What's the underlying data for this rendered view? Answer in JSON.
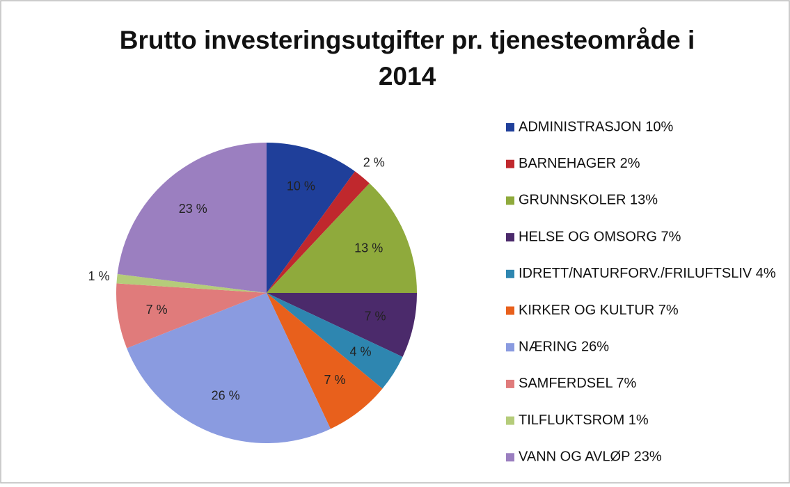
{
  "chart_data": {
    "type": "pie",
    "title": [
      "Brutto investeringsutgifter pr. tjenesteområde i",
      "2014"
    ],
    "categories": [
      "ADMINISTRASJON 10%",
      "BARNEHAGER 2%",
      "GRUNNSKOLER 13%",
      "HELSE OG OMSORG 7%",
      "IDRETT/NATURFORV./FRILUFTSLIV 4%",
      "KIRKER OG KULTUR 7%",
      "NÆRING 26%",
      "SAMFERDSEL 7%",
      "TILFLUKTSROM 1%",
      "VANN OG AVLØP 23%"
    ],
    "values": [
      10,
      2,
      13,
      7,
      4,
      7,
      26,
      7,
      1,
      23
    ],
    "value_labels": [
      "10 %",
      "2 %",
      "13 %",
      "7 %",
      "4 %",
      "7 %",
      "26 %",
      "7 %",
      "1 %",
      "23 %"
    ],
    "colors": [
      "#1f3f9a",
      "#c0282d",
      "#8faa3c",
      "#4b2a6b",
      "#2e86b0",
      "#e8601c",
      "#8a9be0",
      "#e07b7b",
      "#b5cc7a",
      "#9b7fc0"
    ],
    "legend": "right"
  }
}
